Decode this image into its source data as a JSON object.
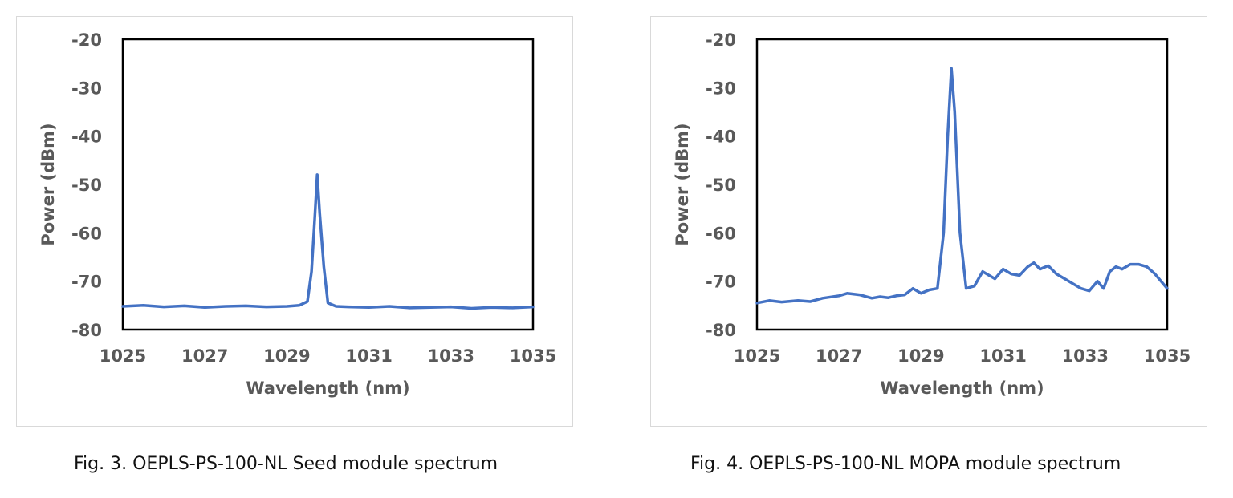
{
  "figures": [
    {
      "caption": "Fig. 3. OEPLS-PS-100-NL Seed module spectrum"
    },
    {
      "caption": "Fig. 4. OEPLS-PS-100-NL MOPA module spectrum"
    }
  ],
  "chart_data": [
    {
      "type": "line",
      "title": "",
      "xlabel": "Wavelength (nm)",
      "ylabel": "Power (dBm)",
      "xlim": [
        1025,
        1035
      ],
      "ylim": [
        -80,
        -20
      ],
      "xticks": [
        1025,
        1027,
        1029,
        1031,
        1033,
        1035
      ],
      "yticks": [
        -20,
        -30,
        -40,
        -50,
        -60,
        -70,
        -80
      ],
      "grid": false,
      "legend": "none",
      "line_color": "#4472c4",
      "series": [
        {
          "x": [
            1025.0,
            1025.5,
            1026.0,
            1026.5,
            1027.0,
            1027.5,
            1028.0,
            1028.5,
            1029.0,
            1029.3,
            1029.5,
            1029.6,
            1029.68,
            1029.74,
            1029.8,
            1029.9,
            1030.0,
            1030.2,
            1030.5,
            1031.0,
            1031.5,
            1032.0,
            1032.5,
            1033.0,
            1033.5,
            1034.0,
            1034.5,
            1035.0
          ],
          "y": [
            -75.2,
            -75.0,
            -75.3,
            -75.1,
            -75.4,
            -75.2,
            -75.1,
            -75.3,
            -75.2,
            -75.0,
            -74.2,
            -68.0,
            -57.0,
            -48.0,
            -56.0,
            -67.0,
            -74.5,
            -75.2,
            -75.3,
            -75.4,
            -75.2,
            -75.5,
            -75.4,
            -75.3,
            -75.6,
            -75.4,
            -75.5,
            -75.3
          ]
        }
      ]
    },
    {
      "type": "line",
      "title": "",
      "xlabel": "Wavelength (nm)",
      "ylabel": "Power (dBm)",
      "xlim": [
        1025,
        1035
      ],
      "ylim": [
        -80,
        -20
      ],
      "xticks": [
        1025,
        1027,
        1029,
        1031,
        1033,
        1035
      ],
      "yticks": [
        -20,
        -30,
        -40,
        -50,
        -60,
        -70,
        -80
      ],
      "grid": false,
      "legend": "none",
      "line_color": "#4472c4",
      "series": [
        {
          "x": [
            1025.0,
            1025.3,
            1025.6,
            1026.0,
            1026.3,
            1026.6,
            1027.0,
            1027.2,
            1027.5,
            1027.8,
            1028.0,
            1028.2,
            1028.4,
            1028.6,
            1028.8,
            1029.0,
            1029.2,
            1029.4,
            1029.55,
            1029.65,
            1029.74,
            1029.82,
            1029.95,
            1030.1,
            1030.3,
            1030.5,
            1030.6,
            1030.8,
            1031.0,
            1031.2,
            1031.4,
            1031.6,
            1031.75,
            1031.9,
            1032.1,
            1032.3,
            1032.5,
            1032.7,
            1032.9,
            1033.1,
            1033.3,
            1033.45,
            1033.6,
            1033.75,
            1033.9,
            1034.1,
            1034.3,
            1034.5,
            1034.7,
            1034.9,
            1035.0
          ],
          "y": [
            -74.5,
            -74.0,
            -74.3,
            -74.0,
            -74.2,
            -73.5,
            -73.0,
            -72.5,
            -72.8,
            -73.5,
            -73.2,
            -73.4,
            -73.0,
            -72.8,
            -71.5,
            -72.5,
            -71.8,
            -71.5,
            -60.0,
            -40.0,
            -26.0,
            -35.0,
            -60.0,
            -71.5,
            -71.0,
            -68.0,
            -68.5,
            -69.5,
            -67.5,
            -68.5,
            -68.8,
            -67.0,
            -66.2,
            -67.5,
            -66.8,
            -68.5,
            -69.5,
            -70.5,
            -71.5,
            -72.0,
            -70.0,
            -71.5,
            -68.0,
            -67.0,
            -67.5,
            -66.5,
            -66.5,
            -67.0,
            -68.5,
            -70.5,
            -71.5
          ]
        }
      ]
    }
  ]
}
